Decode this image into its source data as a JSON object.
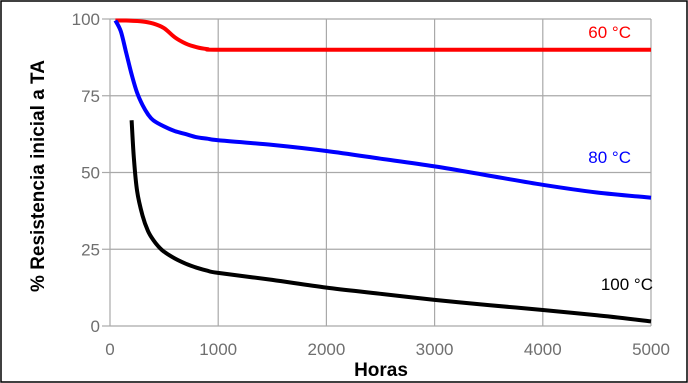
{
  "chart_data": {
    "type": "line",
    "title": "",
    "xlabel": "Horas",
    "ylabel": "% Resistencia inicial a TA",
    "xlim": [
      0,
      5000
    ],
    "ylim": [
      0,
      100
    ],
    "x_ticks": [
      0,
      1000,
      2000,
      3000,
      4000,
      5000
    ],
    "y_ticks": [
      0,
      25,
      50,
      75,
      100
    ],
    "grid": true,
    "legend": "none",
    "series": [
      {
        "name": "60 °C",
        "color": "#ff0000",
        "x": [
          50,
          150,
          300,
          400,
          500,
          600,
          700,
          800,
          900,
          1000,
          2000,
          3000,
          4000,
          5000
        ],
        "y": [
          99.5,
          99.5,
          99.2,
          98.5,
          97,
          94,
          92,
          90.8,
          90.2,
          90,
          90,
          90,
          90,
          90
        ]
      },
      {
        "name": "80 °C",
        "color": "#0000ff",
        "x": [
          50,
          100,
          150,
          200,
          250,
          300,
          350,
          400,
          500,
          600,
          700,
          800,
          900,
          1000,
          1500,
          2000,
          2500,
          3000,
          3500,
          4000,
          4500,
          5000
        ],
        "y": [
          99.5,
          96,
          89,
          82,
          76,
          72,
          69,
          67,
          65,
          63.5,
          62.5,
          61.5,
          61,
          60.5,
          59,
          57,
          54.5,
          52,
          49,
          46,
          43.5,
          41.8
        ]
      },
      {
        "name": "100 °C",
        "color": "#000000",
        "x": [
          200,
          220,
          250,
          300,
          350,
          400,
          450,
          500,
          600,
          700,
          800,
          900,
          1000,
          1500,
          2000,
          2500,
          3000,
          3500,
          4000,
          4500,
          5000
        ],
        "y": [
          67,
          55,
          44,
          36,
          31,
          28,
          25.8,
          24.2,
          22,
          20.3,
          19,
          18,
          17.3,
          15,
          12.5,
          10.5,
          8.5,
          6.8,
          5.2,
          3.5,
          1.5
        ]
      }
    ]
  }
}
